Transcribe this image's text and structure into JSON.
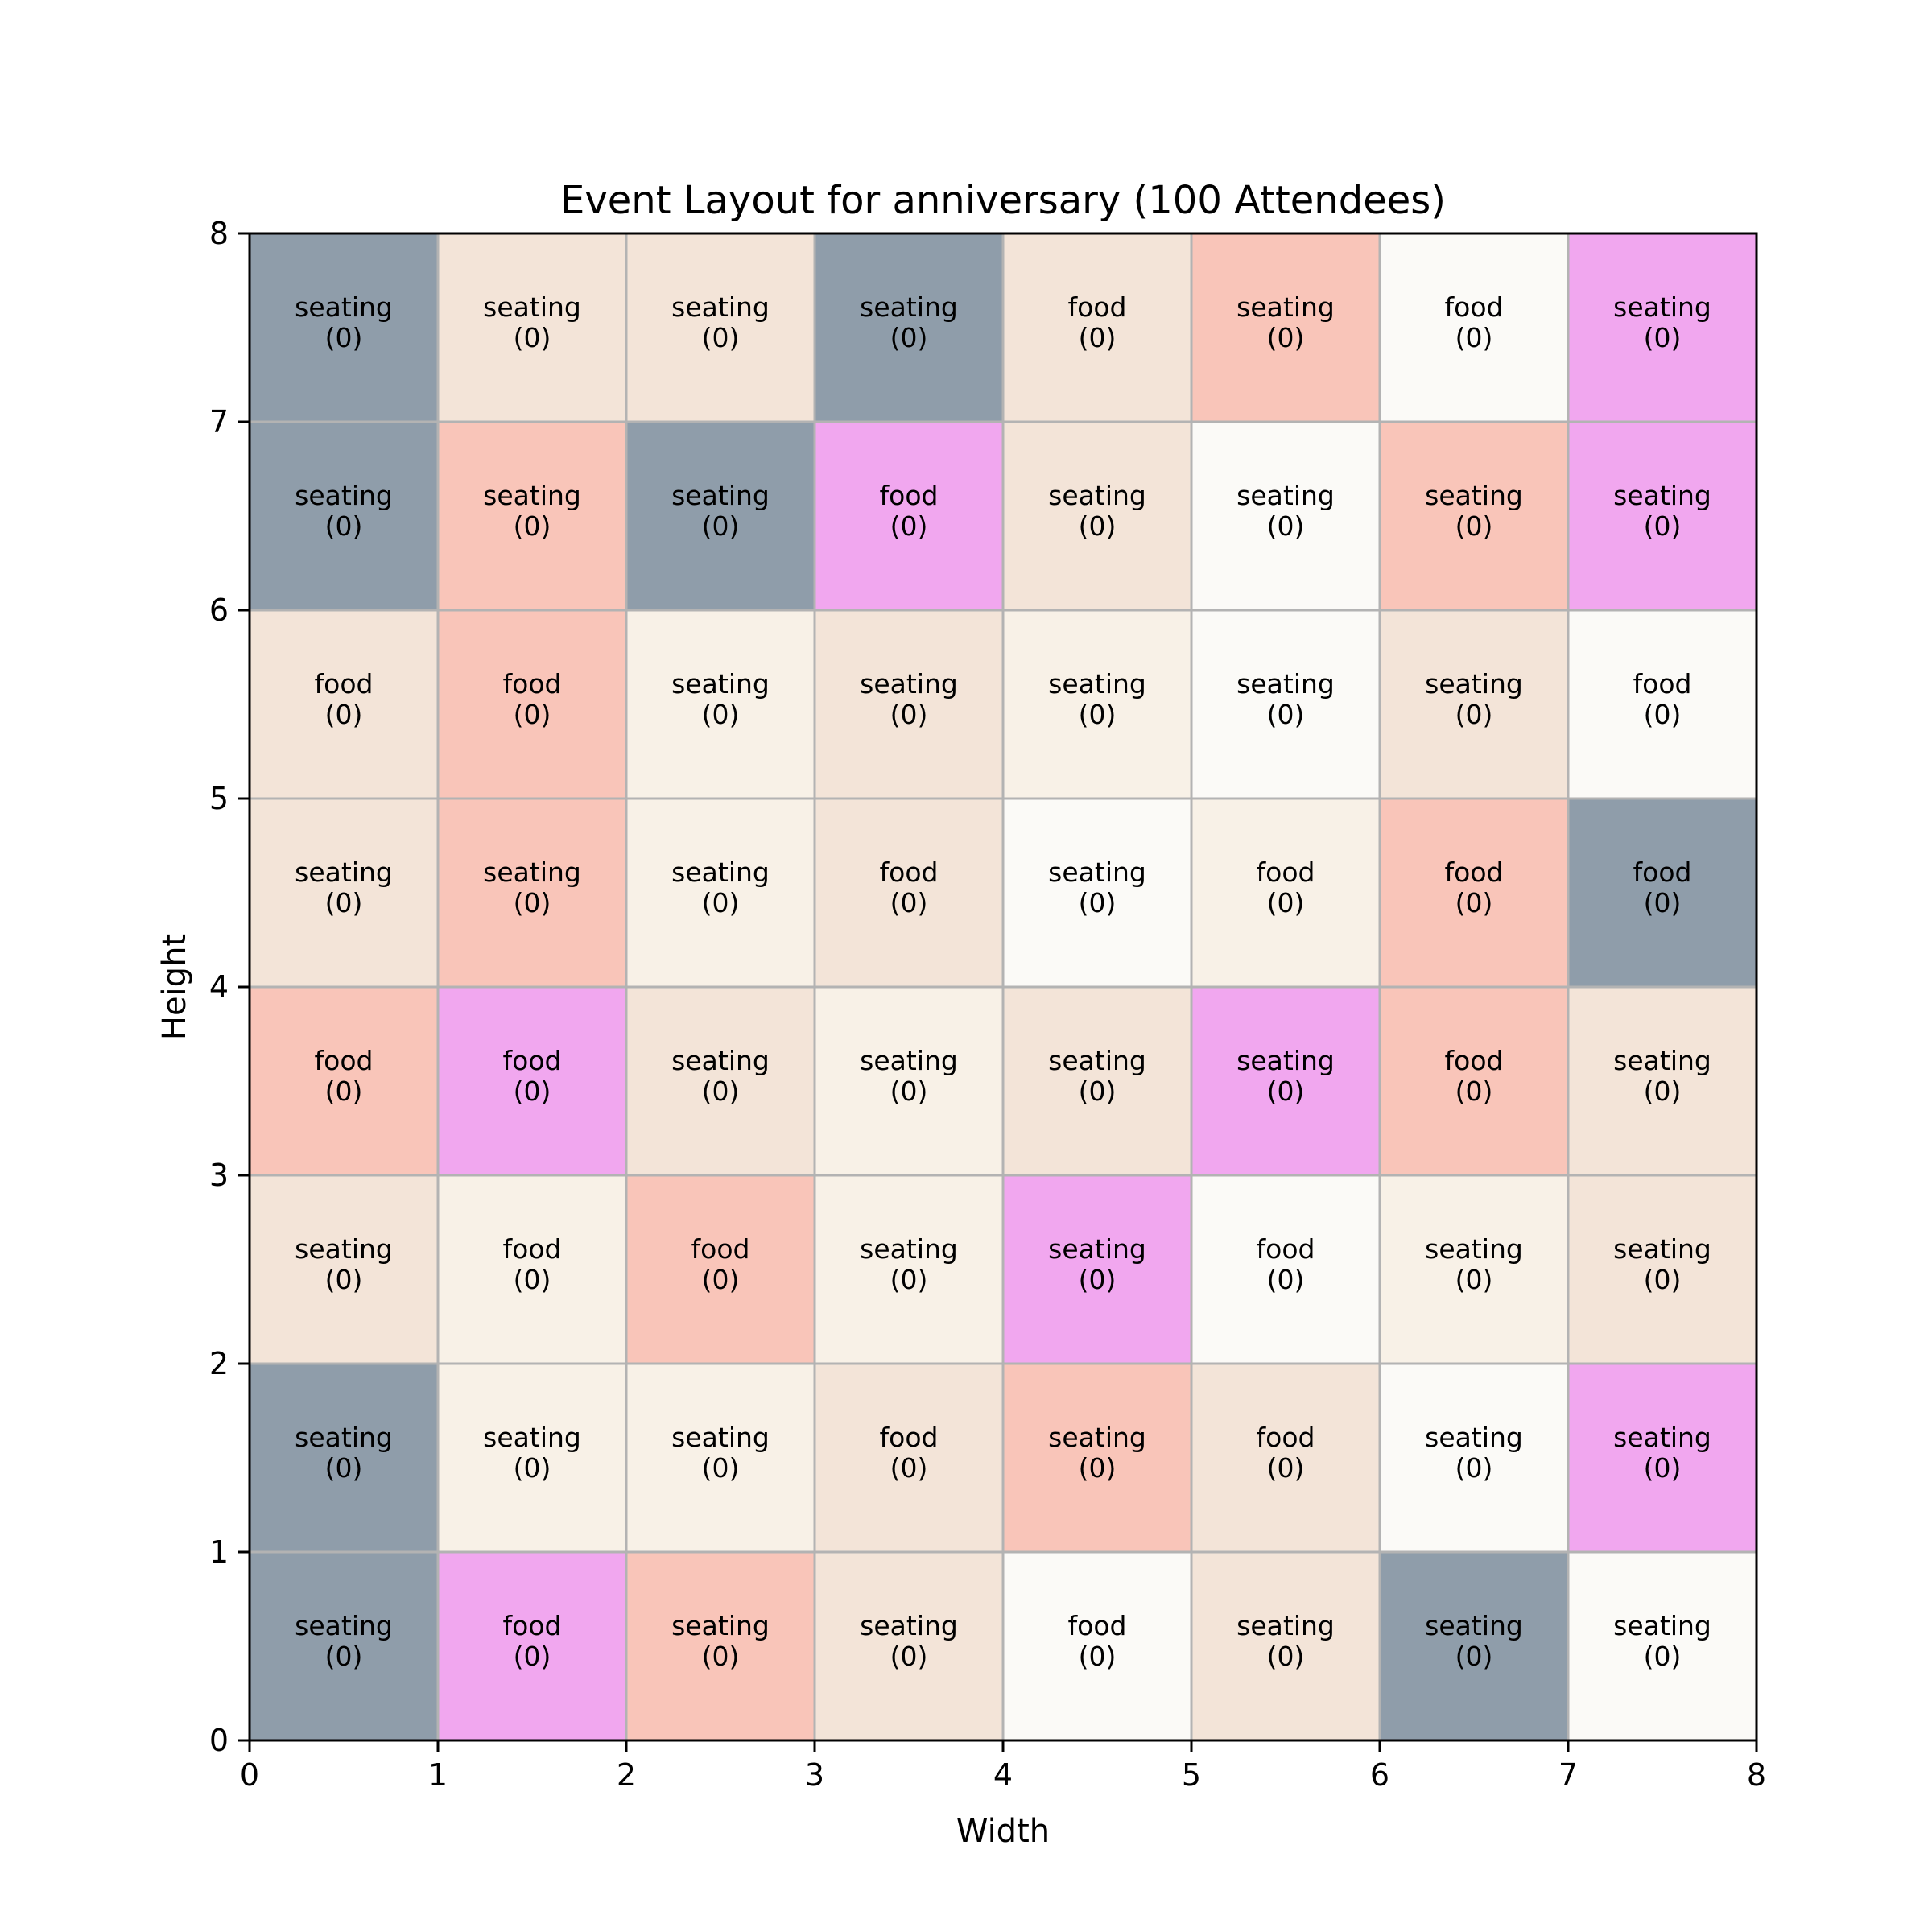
{
  "chart_data": {
    "type": "heatmap",
    "title": "Event Layout for anniversary (100 Attendees)",
    "xlabel": "Width",
    "ylabel": "Height",
    "xlim": [
      0,
      8
    ],
    "ylim": [
      0,
      8
    ],
    "x_ticks": [
      "0",
      "1",
      "2",
      "3",
      "4",
      "5",
      "6",
      "7",
      "8"
    ],
    "y_ticks": [
      "0",
      "1",
      "2",
      "3",
      "4",
      "5",
      "6",
      "7",
      "8"
    ],
    "grid": false,
    "colors": {
      "slate": "#8f9daa",
      "linen": "#f3e4d8",
      "salmon": "#f9c5b9",
      "orchid": "#f1a7ef",
      "offwhite": "#fbfaf7",
      "cream": "#f8f1e7"
    },
    "rows_top_to_bottom": [
      [
        {
          "label": "seating",
          "count": "(0)",
          "color": "slate"
        },
        {
          "label": "seating",
          "count": "(0)",
          "color": "linen"
        },
        {
          "label": "seating",
          "count": "(0)",
          "color": "linen"
        },
        {
          "label": "seating",
          "count": "(0)",
          "color": "slate"
        },
        {
          "label": "food",
          "count": "(0)",
          "color": "linen"
        },
        {
          "label": "seating",
          "count": "(0)",
          "color": "salmon"
        },
        {
          "label": "food",
          "count": "(0)",
          "color": "offwhite"
        },
        {
          "label": "seating",
          "count": "(0)",
          "color": "orchid"
        }
      ],
      [
        {
          "label": "seating",
          "count": "(0)",
          "color": "slate"
        },
        {
          "label": "seating",
          "count": "(0)",
          "color": "salmon"
        },
        {
          "label": "seating",
          "count": "(0)",
          "color": "slate"
        },
        {
          "label": "food",
          "count": "(0)",
          "color": "orchid"
        },
        {
          "label": "seating",
          "count": "(0)",
          "color": "linen"
        },
        {
          "label": "seating",
          "count": "(0)",
          "color": "offwhite"
        },
        {
          "label": "seating",
          "count": "(0)",
          "color": "salmon"
        },
        {
          "label": "seating",
          "count": "(0)",
          "color": "orchid"
        }
      ],
      [
        {
          "label": "food",
          "count": "(0)",
          "color": "linen"
        },
        {
          "label": "food",
          "count": "(0)",
          "color": "salmon"
        },
        {
          "label": "seating",
          "count": "(0)",
          "color": "cream"
        },
        {
          "label": "seating",
          "count": "(0)",
          "color": "linen"
        },
        {
          "label": "seating",
          "count": "(0)",
          "color": "cream"
        },
        {
          "label": "seating",
          "count": "(0)",
          "color": "offwhite"
        },
        {
          "label": "seating",
          "count": "(0)",
          "color": "linen"
        },
        {
          "label": "food",
          "count": "(0)",
          "color": "offwhite"
        }
      ],
      [
        {
          "label": "seating",
          "count": "(0)",
          "color": "linen"
        },
        {
          "label": "seating",
          "count": "(0)",
          "color": "salmon"
        },
        {
          "label": "seating",
          "count": "(0)",
          "color": "cream"
        },
        {
          "label": "food",
          "count": "(0)",
          "color": "linen"
        },
        {
          "label": "seating",
          "count": "(0)",
          "color": "offwhite"
        },
        {
          "label": "food",
          "count": "(0)",
          "color": "cream"
        },
        {
          "label": "food",
          "count": "(0)",
          "color": "salmon"
        },
        {
          "label": "food",
          "count": "(0)",
          "color": "slate"
        }
      ],
      [
        {
          "label": "food",
          "count": "(0)",
          "color": "salmon"
        },
        {
          "label": "food",
          "count": "(0)",
          "color": "orchid"
        },
        {
          "label": "seating",
          "count": "(0)",
          "color": "linen"
        },
        {
          "label": "seating",
          "count": "(0)",
          "color": "cream"
        },
        {
          "label": "seating",
          "count": "(0)",
          "color": "linen"
        },
        {
          "label": "seating",
          "count": "(0)",
          "color": "orchid"
        },
        {
          "label": "food",
          "count": "(0)",
          "color": "salmon"
        },
        {
          "label": "seating",
          "count": "(0)",
          "color": "linen"
        }
      ],
      [
        {
          "label": "seating",
          "count": "(0)",
          "color": "linen"
        },
        {
          "label": "food",
          "count": "(0)",
          "color": "cream"
        },
        {
          "label": "food",
          "count": "(0)",
          "color": "salmon"
        },
        {
          "label": "seating",
          "count": "(0)",
          "color": "cream"
        },
        {
          "label": "seating",
          "count": "(0)",
          "color": "orchid"
        },
        {
          "label": "food",
          "count": "(0)",
          "color": "offwhite"
        },
        {
          "label": "seating",
          "count": "(0)",
          "color": "cream"
        },
        {
          "label": "seating",
          "count": "(0)",
          "color": "linen"
        }
      ],
      [
        {
          "label": "seating",
          "count": "(0)",
          "color": "slate"
        },
        {
          "label": "seating",
          "count": "(0)",
          "color": "cream"
        },
        {
          "label": "seating",
          "count": "(0)",
          "color": "cream"
        },
        {
          "label": "food",
          "count": "(0)",
          "color": "linen"
        },
        {
          "label": "seating",
          "count": "(0)",
          "color": "salmon"
        },
        {
          "label": "food",
          "count": "(0)",
          "color": "linen"
        },
        {
          "label": "seating",
          "count": "(0)",
          "color": "offwhite"
        },
        {
          "label": "seating",
          "count": "(0)",
          "color": "orchid"
        }
      ],
      [
        {
          "label": "seating",
          "count": "(0)",
          "color": "slate"
        },
        {
          "label": "food",
          "count": "(0)",
          "color": "orchid"
        },
        {
          "label": "seating",
          "count": "(0)",
          "color": "salmon"
        },
        {
          "label": "seating",
          "count": "(0)",
          "color": "linen"
        },
        {
          "label": "food",
          "count": "(0)",
          "color": "offwhite"
        },
        {
          "label": "seating",
          "count": "(0)",
          "color": "linen"
        },
        {
          "label": "seating",
          "count": "(0)",
          "color": "slate"
        },
        {
          "label": "seating",
          "count": "(0)",
          "color": "offwhite"
        }
      ]
    ]
  }
}
